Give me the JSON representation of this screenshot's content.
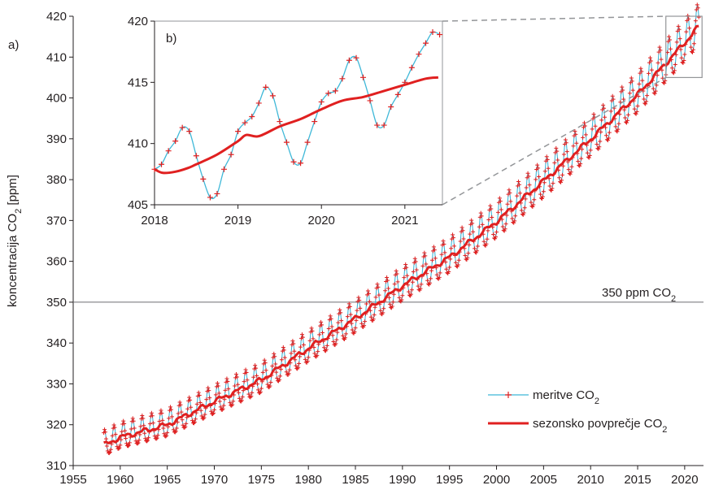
{
  "chart_data": [
    {
      "panel_label": "a)",
      "type": "line",
      "ylabel": "koncentracija CO",
      "ylabel_sub": "2",
      "ylabel_unit": " [ppm]",
      "xlim": [
        1955,
        2022
      ],
      "ylim": [
        310,
        420
      ],
      "x_ticks": [
        1955,
        1960,
        1965,
        1970,
        1975,
        1980,
        1985,
        1990,
        1995,
        2000,
        2005,
        2010,
        2015,
        2020
      ],
      "y_ticks": [
        310,
        320,
        330,
        340,
        350,
        360,
        370,
        380,
        390,
        400,
        410,
        420
      ],
      "reference_line": {
        "y": 350,
        "label": "350 ppm CO",
        "label_sub": "2"
      },
      "series": [
        {
          "name": "meritve CO",
          "name_sub": "2",
          "color": "#3fb8d8",
          "marker": "+",
          "marker_color": "#e02020",
          "model": "monthly measurements, x from 1958.25 to 2021.5: seasonal mean + annual cycle",
          "seasonal_amplitude_ppm": 3.2,
          "seasonal_peak_month": 5
        },
        {
          "name": "sezonsko povprečje CO",
          "name_sub": "2",
          "color": "#e02020",
          "x": [
            1958.25,
            1960,
            1965,
            1970,
            1975,
            1980,
            1985,
            1990,
            1995,
            2000,
            2005,
            2010,
            2015,
            2018,
            2020,
            2021.5
          ],
          "y": [
            315.0,
            316.9,
            320.0,
            325.7,
            331.0,
            338.7,
            346.0,
            354.0,
            361.0,
            369.7,
            379.7,
            389.9,
            400.8,
            408.5,
            413.5,
            417.5
          ]
        }
      ],
      "zoom_box": {
        "x": [
          2018,
          2021.5
        ],
        "y": [
          405,
          420
        ]
      }
    },
    {
      "panel_label": "b)",
      "type": "line",
      "xlim": [
        2018,
        2021.45
      ],
      "ylim": [
        405,
        420
      ],
      "x_ticks": [
        2018,
        2019,
        2020,
        2021
      ],
      "y_ticks": [
        405,
        410,
        415,
        420
      ],
      "series": [
        {
          "name": "meritve CO",
          "color": "#3fb8d8",
          "marker_color": "#e02020",
          "x": [
            2018.0,
            2018.083,
            2018.167,
            2018.25,
            2018.333,
            2018.417,
            2018.5,
            2018.583,
            2018.667,
            2018.75,
            2018.833,
            2018.917,
            2019.0,
            2019.083,
            2019.167,
            2019.25,
            2019.333,
            2019.417,
            2019.5,
            2019.583,
            2019.667,
            2019.75,
            2019.833,
            2019.917,
            2020.0,
            2020.083,
            2020.167,
            2020.25,
            2020.333,
            2020.417,
            2020.5,
            2020.583,
            2020.667,
            2020.75,
            2020.833,
            2020.917,
            2021.0,
            2021.083,
            2021.167,
            2021.25,
            2021.333,
            2021.417
          ],
          "y": [
            407.9,
            408.3,
            409.4,
            410.2,
            411.3,
            411.0,
            409.0,
            407.1,
            405.6,
            405.9,
            407.9,
            409.1,
            411.0,
            411.7,
            412.2,
            413.3,
            414.6,
            413.9,
            411.8,
            410.1,
            408.5,
            408.4,
            410.1,
            411.8,
            413.4,
            414.1,
            414.3,
            415.3,
            416.8,
            417.0,
            415.4,
            413.5,
            411.5,
            411.5,
            413.0,
            414.0,
            415.0,
            416.2,
            417.3,
            418.2,
            419.1,
            418.9
          ]
        },
        {
          "name": "sezonsko povprečje CO",
          "color": "#e02020",
          "x": [
            2018.0,
            2018.1,
            2018.25,
            2018.4,
            2018.5,
            2018.75,
            2019.0,
            2019.1,
            2019.25,
            2019.5,
            2019.75,
            2020.0,
            2020.25,
            2020.5,
            2020.75,
            2021.0,
            2021.25,
            2021.4
          ],
          "y": [
            407.9,
            407.6,
            407.7,
            408.0,
            408.3,
            409.1,
            410.2,
            410.7,
            410.6,
            411.4,
            412.0,
            412.8,
            413.5,
            413.8,
            414.3,
            414.8,
            415.3,
            415.4
          ]
        }
      ]
    }
  ]
}
